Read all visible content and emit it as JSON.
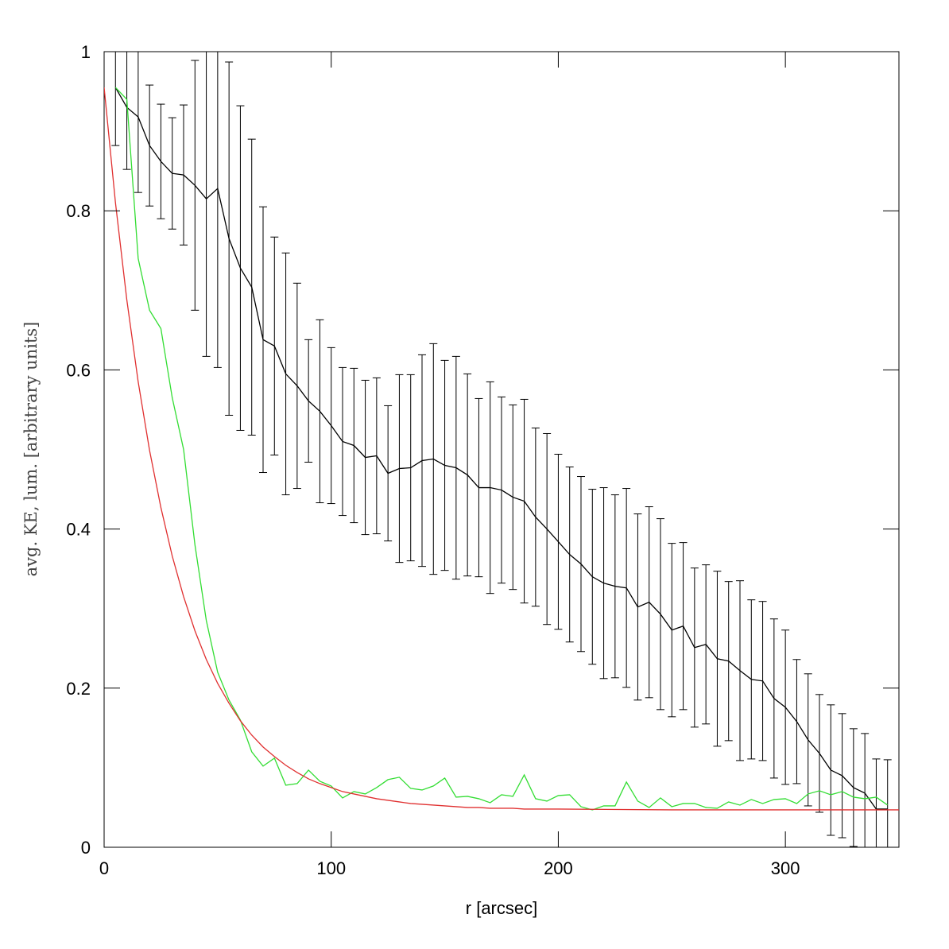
{
  "chart_data": {
    "type": "line",
    "xlabel": "r [arcsec]",
    "ylabel": "avg. KE, lum. [arbitrary units]",
    "xlim": [
      0,
      350
    ],
    "ylim": [
      0,
      1
    ],
    "xticks": [
      0,
      100,
      200,
      300
    ],
    "yticks": [
      0,
      0.2,
      0.4,
      0.6,
      0.8,
      1
    ],
    "series": [
      {
        "color": "#000000",
        "x": [
          5,
          10,
          15,
          20,
          25,
          30,
          35,
          40,
          45,
          50,
          55,
          60,
          65,
          70,
          75,
          80,
          85,
          90,
          95,
          100,
          105,
          110,
          115,
          120,
          125,
          130,
          135,
          140,
          145,
          150,
          155,
          160,
          165,
          170,
          175,
          180,
          185,
          190,
          195,
          200,
          205,
          210,
          215,
          220,
          225,
          230,
          235,
          240,
          245,
          250,
          255,
          260,
          265,
          270,
          275,
          280,
          285,
          290,
          295,
          300,
          305,
          310,
          315,
          320,
          325,
          330,
          335,
          340,
          345
        ],
        "values": [
          0.955,
          0.93,
          0.918,
          0.882,
          0.862,
          0.847,
          0.845,
          0.832,
          0.815,
          0.828,
          0.765,
          0.728,
          0.704,
          0.638,
          0.63,
          0.595,
          0.58,
          0.561,
          0.548,
          0.53,
          0.51,
          0.505,
          0.49,
          0.492,
          0.47,
          0.476,
          0.477,
          0.486,
          0.488,
          0.48,
          0.477,
          0.468,
          0.452,
          0.452,
          0.449,
          0.44,
          0.435,
          0.415,
          0.4,
          0.384,
          0.368,
          0.356,
          0.34,
          0.332,
          0.328,
          0.326,
          0.302,
          0.308,
          0.293,
          0.273,
          0.278,
          0.251,
          0.255,
          0.237,
          0.234,
          0.222,
          0.211,
          0.209,
          0.187,
          0.176,
          0.158,
          0.135,
          0.118,
          0.097,
          0.09,
          0.075,
          0.068,
          0.048,
          0.048
        ],
        "errors": [
          0.073,
          0.078,
          0.095,
          0.076,
          0.072,
          0.07,
          0.088,
          0.157,
          0.198,
          0.225,
          0.222,
          0.204,
          0.186,
          0.167,
          0.137,
          0.152,
          0.129,
          0.077,
          0.115,
          0.098,
          0.093,
          0.097,
          0.097,
          0.098,
          0.085,
          0.118,
          0.117,
          0.133,
          0.145,
          0.132,
          0.14,
          0.127,
          0.112,
          0.133,
          0.117,
          0.116,
          0.128,
          0.112,
          0.12,
          0.11,
          0.11,
          0.11,
          0.11,
          0.12,
          0.115,
          0.125,
          0.117,
          0.12,
          0.12,
          0.109,
          0.105,
          0.1,
          0.1,
          0.11,
          0.1,
          0.113,
          0.1,
          0.1,
          0.1,
          0.097,
          0.078,
          0.083,
          0.074,
          0.082,
          0.078,
          0.074,
          0.075,
          0.063,
          0.062
        ]
      },
      {
        "color": "#33dd33",
        "x": [
          5,
          10,
          15,
          20,
          25,
          30,
          35,
          40,
          45,
          50,
          55,
          60,
          65,
          70,
          75,
          80,
          85,
          90,
          95,
          100,
          105,
          110,
          115,
          120,
          125,
          130,
          135,
          140,
          145,
          150,
          155,
          160,
          165,
          170,
          175,
          180,
          185,
          190,
          195,
          200,
          205,
          210,
          215,
          220,
          225,
          230,
          235,
          240,
          245,
          250,
          255,
          260,
          265,
          270,
          275,
          280,
          285,
          290,
          295,
          300,
          305,
          310,
          315,
          320,
          325,
          330,
          335,
          340,
          345
        ],
        "values": [
          0.955,
          0.94,
          0.74,
          0.675,
          0.652,
          0.565,
          0.5,
          0.38,
          0.285,
          0.22,
          0.185,
          0.16,
          0.12,
          0.102,
          0.112,
          0.078,
          0.08,
          0.097,
          0.083,
          0.077,
          0.062,
          0.07,
          0.067,
          0.075,
          0.085,
          0.088,
          0.074,
          0.072,
          0.077,
          0.087,
          0.063,
          0.064,
          0.061,
          0.056,
          0.066,
          0.064,
          0.091,
          0.061,
          0.058,
          0.065,
          0.066,
          0.051,
          0.047,
          0.052,
          0.052,
          0.082,
          0.058,
          0.05,
          0.062,
          0.051,
          0.055,
          0.055,
          0.05,
          0.049,
          0.057,
          0.053,
          0.06,
          0.055,
          0.06,
          0.061,
          0.055,
          0.067,
          0.071,
          0.066,
          0.07,
          0.063,
          0.061,
          0.063,
          0.053
        ]
      },
      {
        "color": "#e03030",
        "x": [
          0,
          5,
          10,
          15,
          20,
          25,
          30,
          35,
          40,
          45,
          50,
          55,
          60,
          65,
          70,
          75,
          80,
          85,
          90,
          95,
          100,
          105,
          110,
          115,
          120,
          125,
          130,
          135,
          140,
          145,
          150,
          155,
          160,
          165,
          170,
          175,
          180,
          185,
          190,
          195,
          200,
          250,
          300,
          350
        ],
        "values": [
          0.955,
          0.81,
          0.688,
          0.585,
          0.499,
          0.427,
          0.366,
          0.315,
          0.272,
          0.236,
          0.206,
          0.181,
          0.159,
          0.141,
          0.126,
          0.114,
          0.103,
          0.094,
          0.086,
          0.08,
          0.075,
          0.07,
          0.067,
          0.064,
          0.061,
          0.059,
          0.057,
          0.055,
          0.054,
          0.053,
          0.052,
          0.051,
          0.05,
          0.05,
          0.049,
          0.049,
          0.049,
          0.048,
          0.048,
          0.048,
          0.048,
          0.047,
          0.047,
          0.047
        ]
      }
    ]
  }
}
